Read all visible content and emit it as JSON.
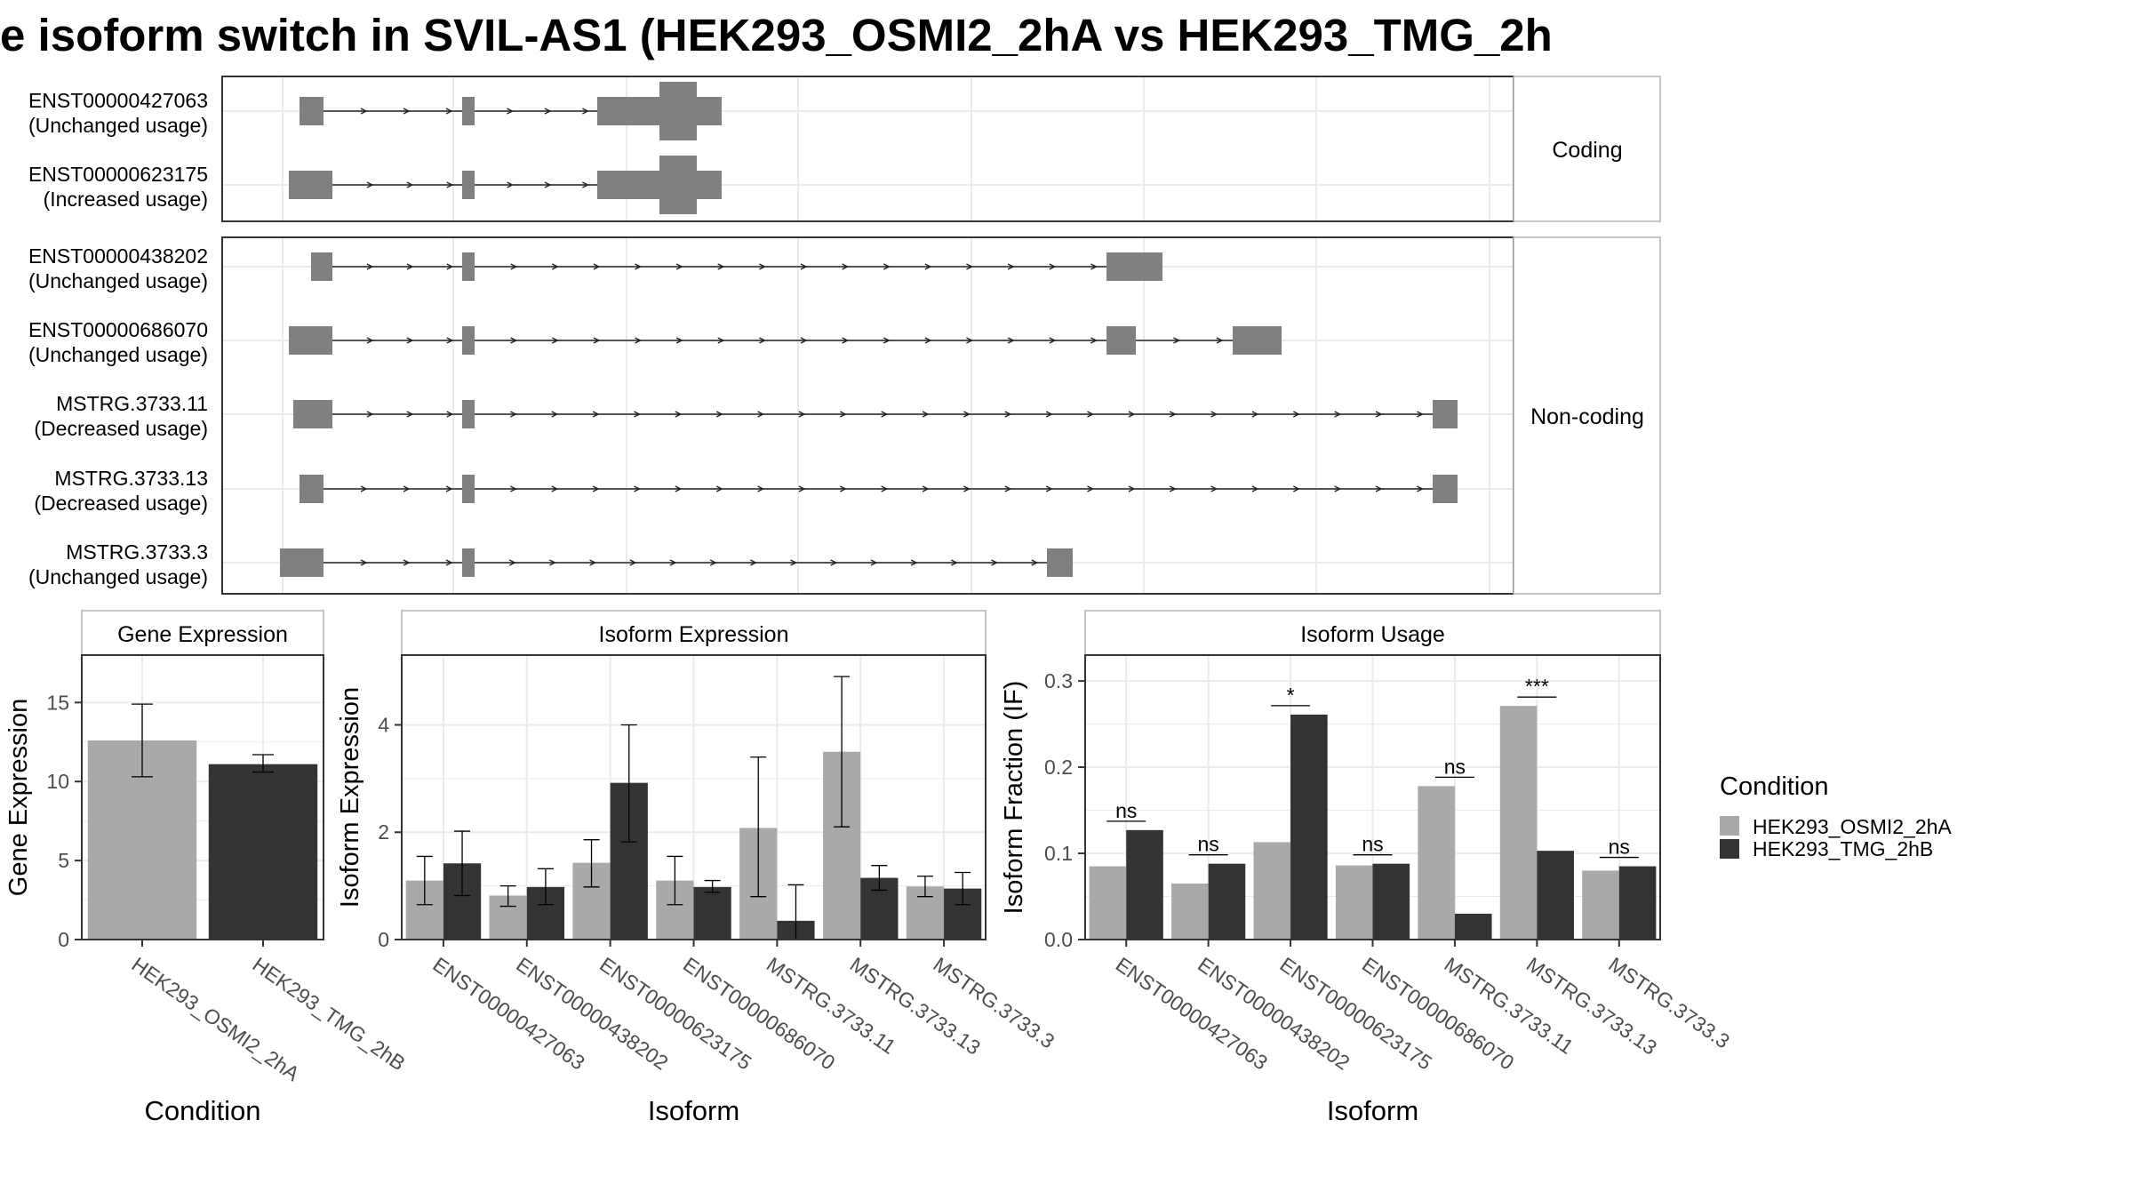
{
  "title": "e isoform switch in SVIL-AS1 (HEK293_OSMI2_2hA vs HEK293_TMG_2h",
  "colors": {
    "cond_a": "#A9A9A9",
    "cond_b": "#333333",
    "exon": "#808080",
    "grid": "#EBEBEB",
    "panel_border": "#333333",
    "strip_border": "#B3B3B3"
  },
  "chart_data": [
    {
      "type": "gene-structure",
      "section": "Coding",
      "tracks": [
        {
          "id": "ENST00000427063",
          "usage": "(Unchanged usage)"
        },
        {
          "id": "ENST00000623175",
          "usage": "(Increased usage)"
        }
      ]
    },
    {
      "type": "gene-structure",
      "section": "Non-coding",
      "tracks": [
        {
          "id": "ENST00000438202",
          "usage": "(Unchanged usage)"
        },
        {
          "id": "ENST00000686070",
          "usage": "(Unchanged usage)"
        },
        {
          "id": "MSTRG.3733.11",
          "usage": "(Decreased usage)"
        },
        {
          "id": "MSTRG.3733.13",
          "usage": "(Decreased usage)"
        },
        {
          "id": "MSTRG.3733.3",
          "usage": "(Unchanged usage)"
        }
      ]
    },
    {
      "type": "bar",
      "panel_title": "Gene Expression",
      "xlabel": "Condition",
      "ylabel": "Gene Expression",
      "ylim": [
        0,
        18
      ],
      "yticks": [
        0,
        5,
        10,
        15
      ],
      "categories": [
        "HEK293_OSMI2_2hA",
        "HEK293_TMG_2hB"
      ],
      "values": [
        12.6,
        11.1
      ],
      "errors": [
        [
          10.3,
          14.9
        ],
        [
          10.6,
          11.7
        ]
      ]
    },
    {
      "type": "bar",
      "panel_title": "Isoform Expression",
      "xlabel": "Isoform",
      "ylabel": "Isoform Expression",
      "ylim": [
        0,
        5.3
      ],
      "yticks": [
        0,
        2,
        4
      ],
      "categories": [
        "ENST00000427063",
        "ENST00000438202",
        "ENST00000623175",
        "ENST00000686070",
        "MSTRG.3733.11",
        "MSTRG.3733.13",
        "MSTRG.3733.3"
      ],
      "series": [
        {
          "name": "HEK293_OSMI2_2hA",
          "values": [
            1.1,
            0.82,
            1.43,
            1.1,
            2.08,
            3.5,
            0.99
          ],
          "errors": [
            [
              0.65,
              1.55
            ],
            [
              0.62,
              1.0
            ],
            [
              0.98,
              1.86
            ],
            [
              0.65,
              1.55
            ],
            [
              0.8,
              3.4
            ],
            [
              2.1,
              4.9
            ],
            [
              0.8,
              1.18
            ]
          ]
        },
        {
          "name": "HEK293_TMG_2hB",
          "values": [
            1.42,
            0.98,
            2.92,
            0.98,
            0.35,
            1.15,
            0.95
          ],
          "errors": [
            [
              0.82,
              2.02
            ],
            [
              0.65,
              1.32
            ],
            [
              1.82,
              4.0
            ],
            [
              0.88,
              1.1
            ],
            [
              0.0,
              1.02
            ],
            [
              0.92,
              1.38
            ],
            [
              0.65,
              1.25
            ]
          ]
        }
      ]
    },
    {
      "type": "bar",
      "panel_title": "Isoform Usage",
      "xlabel": "Isoform",
      "ylabel": "Isoform Fraction (IF)",
      "ylim": [
        0,
        0.33
      ],
      "yticks": [
        0.0,
        0.1,
        0.2,
        0.3
      ],
      "ytick_labels": [
        "0.0",
        "0.1",
        "0.2",
        "0.3"
      ],
      "categories": [
        "ENST00000427063",
        "ENST00000438202",
        "ENST00000623175",
        "ENST00000686070",
        "MSTRG.3733.11",
        "MSTRG.3733.13",
        "MSTRG.3733.3"
      ],
      "series": [
        {
          "name": "HEK293_OSMI2_2hA",
          "values": [
            0.085,
            0.065,
            0.113,
            0.086,
            0.178,
            0.271,
            0.08
          ]
        },
        {
          "name": "HEK293_TMG_2hB",
          "values": [
            0.127,
            0.088,
            0.261,
            0.088,
            0.03,
            0.103,
            0.085
          ]
        }
      ],
      "significance": [
        "ns",
        "ns",
        "*",
        "ns",
        "ns",
        "***",
        "ns"
      ]
    }
  ],
  "legend": {
    "title": "Condition",
    "items": [
      "HEK293_OSMI2_2hA",
      "HEK293_TMG_2hB"
    ]
  }
}
